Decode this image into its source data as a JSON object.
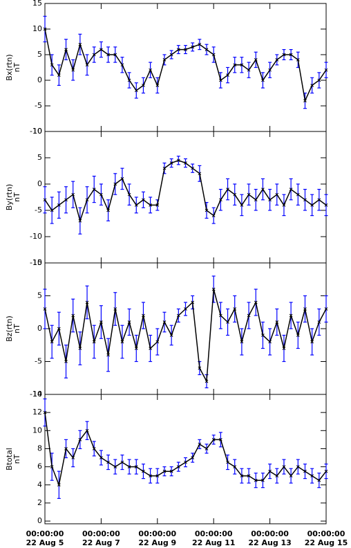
{
  "chart_data": [
    {
      "type": "line",
      "ylabel": "Bx(rtn)",
      "yunit": "nT",
      "ylim": [
        -10,
        15
      ],
      "yticks": [
        -10,
        -5,
        0,
        5,
        10,
        15
      ],
      "x": [
        0,
        0.25,
        0.5,
        0.75,
        1,
        1.25,
        1.5,
        1.75,
        2,
        2.25,
        2.5,
        2.75,
        3,
        3.25,
        3.5,
        3.75,
        4,
        4.25,
        4.5,
        4.75,
        5,
        5.25,
        5.5,
        5.75,
        6,
        6.25,
        6.5,
        6.75,
        7,
        7.25,
        7.5,
        7.75,
        8,
        8.25,
        8.5,
        8.75,
        9,
        9.25,
        9.5,
        9.75,
        10
      ],
      "xlim": [
        0,
        10
      ],
      "series": [
        {
          "name": "Bx",
          "color": "#000000",
          "error_color": "#0000ff",
          "values": [
            10,
            3,
            1,
            6,
            2,
            7,
            3,
            5,
            6,
            5,
            5,
            3,
            0,
            -2,
            -1,
            2,
            -1,
            4,
            5,
            6,
            6,
            6.5,
            7,
            6,
            5,
            0,
            1,
            3,
            3,
            2,
            4,
            0,
            2,
            4,
            5,
            5,
            4,
            -4,
            -1,
            0,
            2
          ],
          "errors": [
            2.5,
            2,
            2,
            2,
            2,
            2,
            2,
            1.5,
            1.5,
            1.5,
            1.5,
            1.5,
            1.5,
            1.5,
            1.5,
            1.5,
            1.5,
            1,
            0.8,
            0.8,
            0.8,
            0.8,
            1,
            1,
            1.5,
            1.5,
            1.5,
            1.5,
            1.5,
            1.5,
            1.5,
            1.5,
            1.5,
            1,
            1,
            1,
            1.5,
            1.5,
            1.5,
            1.5,
            1.5
          ]
        }
      ]
    },
    {
      "type": "line",
      "ylabel": "By(rtn)",
      "yunit": "nT",
      "ylim": [
        -15,
        10
      ],
      "yticks": [
        -15,
        -10,
        -5,
        0,
        5,
        10
      ],
      "x": [
        0,
        0.25,
        0.5,
        0.75,
        1,
        1.25,
        1.5,
        1.75,
        2,
        2.25,
        2.5,
        2.75,
        3,
        3.25,
        3.5,
        3.75,
        4,
        4.25,
        4.5,
        4.75,
        5,
        5.25,
        5.5,
        5.75,
        6,
        6.25,
        6.5,
        6.75,
        7,
        7.25,
        7.5,
        7.75,
        8,
        8.25,
        8.5,
        8.75,
        9,
        9.25,
        9.5,
        9.75,
        10
      ],
      "xlim": [
        0,
        10
      ],
      "series": [
        {
          "name": "By",
          "color": "#000000",
          "error_color": "#0000ff",
          "values": [
            -3,
            -5,
            -4,
            -3,
            -2,
            -7,
            -3,
            -1,
            -2,
            -5,
            0,
            1,
            -2,
            -4,
            -3,
            -4,
            -4,
            3,
            4,
            4.5,
            4,
            3,
            2,
            -5,
            -6,
            -3,
            -1,
            -2,
            -4,
            -2,
            -3,
            -1,
            -3,
            -2,
            -4,
            -1,
            -2,
            -3,
            -4,
            -3,
            -4
          ],
          "errors": [
            2.5,
            2.5,
            2.5,
            2.5,
            2.5,
            2.5,
            2.5,
            2.5,
            2,
            2,
            2,
            2,
            2,
            1.5,
            1.5,
            1.5,
            1,
            1,
            0.8,
            0.8,
            0.8,
            0.8,
            1.5,
            1.5,
            1.5,
            2,
            2,
            2,
            2,
            2,
            2,
            2,
            2,
            2,
            2,
            2,
            2,
            2,
            2,
            2,
            2
          ]
        }
      ]
    },
    {
      "type": "line",
      "ylabel": "Bz(rtn)",
      "yunit": "nT",
      "ylim": [
        -10,
        10
      ],
      "yticks": [
        -10,
        -5,
        0,
        5,
        10
      ],
      "x": [
        0,
        0.25,
        0.5,
        0.75,
        1,
        1.25,
        1.5,
        1.75,
        2,
        2.25,
        2.5,
        2.75,
        3,
        3.25,
        3.5,
        3.75,
        4,
        4.25,
        4.5,
        4.75,
        5,
        5.25,
        5.5,
        5.75,
        6,
        6.25,
        6.5,
        6.75,
        7,
        7.25,
        7.5,
        7.75,
        8,
        8.25,
        8.5,
        8.75,
        9,
        9.25,
        9.5,
        9.75,
        10
      ],
      "xlim": [
        0,
        10
      ],
      "series": [
        {
          "name": "Bz",
          "color": "#000000",
          "error_color": "#0000ff",
          "values": [
            3,
            -2,
            0,
            -5,
            2,
            -3,
            4,
            -2,
            1,
            -4,
            3,
            -2,
            1,
            -3,
            2,
            -3,
            -2,
            1,
            -1,
            2,
            3,
            4,
            -6,
            -8,
            6,
            2,
            1,
            3,
            -2,
            2,
            4,
            -1,
            -2,
            1,
            -3,
            2,
            -1,
            3,
            -2,
            1,
            3
          ],
          "errors": [
            3,
            2.5,
            2.5,
            2.5,
            2.5,
            2.5,
            2.5,
            2.5,
            2.5,
            2.5,
            2.5,
            2.5,
            2,
            2,
            2,
            2,
            2,
            1.5,
            1.5,
            1,
            1,
            1,
            1,
            1,
            2,
            2,
            2,
            2,
            2,
            2,
            2,
            2,
            2,
            2,
            2,
            2,
            2,
            2,
            2,
            2,
            2
          ]
        }
      ]
    },
    {
      "type": "line",
      "ylabel": "Btotal",
      "yunit": "nT",
      "ylim": [
        -0.3,
        14
      ],
      "yticks": [
        0,
        2,
        4,
        6,
        8,
        10,
        12,
        14
      ],
      "x": [
        0,
        0.25,
        0.5,
        0.75,
        1,
        1.25,
        1.5,
        1.75,
        2,
        2.25,
        2.5,
        2.75,
        3,
        3.25,
        3.5,
        3.75,
        4,
        4.25,
        4.5,
        4.75,
        5,
        5.25,
        5.5,
        5.75,
        6,
        6.25,
        6.5,
        6.75,
        7,
        7.25,
        7.5,
        7.75,
        8,
        8.25,
        8.5,
        8.75,
        9,
        9.25,
        9.5,
        9.75,
        10
      ],
      "xlim": [
        0,
        10
      ],
      "xticks": [
        {
          "value": 0,
          "time": "00:00:00",
          "label": "22 Aug  5"
        },
        {
          "value": 2,
          "time": "00:00:00",
          "label": "22 Aug  7"
        },
        {
          "value": 4,
          "time": "00:00:00",
          "label": "22 Aug  9"
        },
        {
          "value": 6,
          "time": "00:00:00",
          "label": "22 Aug 11"
        },
        {
          "value": 8,
          "time": "00:00:00",
          "label": "22 Aug 13"
        },
        {
          "value": 10,
          "time": "00:00:00",
          "label": "22 Aug 15"
        }
      ],
      "series": [
        {
          "name": "Btotal",
          "color": "#000000",
          "error_color": "#0000ff",
          "values": [
            12,
            6,
            4,
            8,
            7,
            9,
            10,
            8,
            7,
            6.5,
            6,
            6.5,
            6,
            6,
            5.5,
            5,
            5,
            5.5,
            5.5,
            6,
            6.5,
            7,
            8.5,
            8,
            9,
            9,
            6.5,
            6,
            5,
            5,
            4.5,
            4.5,
            5.5,
            5,
            6,
            5,
            6,
            5.5,
            5,
            4.5,
            5.5
          ],
          "errors": [
            1.5,
            1.5,
            1.5,
            1,
            1,
            1,
            1,
            0.8,
            0.8,
            0.8,
            0.8,
            0.8,
            0.8,
            0.8,
            0.8,
            0.8,
            0.8,
            0.5,
            0.5,
            0.5,
            0.5,
            0.5,
            0.5,
            0.5,
            0.5,
            0.8,
            0.8,
            0.8,
            0.8,
            0.8,
            0.8,
            0.8,
            0.8,
            0.8,
            0.8,
            0.8,
            0.8,
            0.8,
            0.8,
            0.8,
            0.8
          ]
        }
      ]
    }
  ]
}
